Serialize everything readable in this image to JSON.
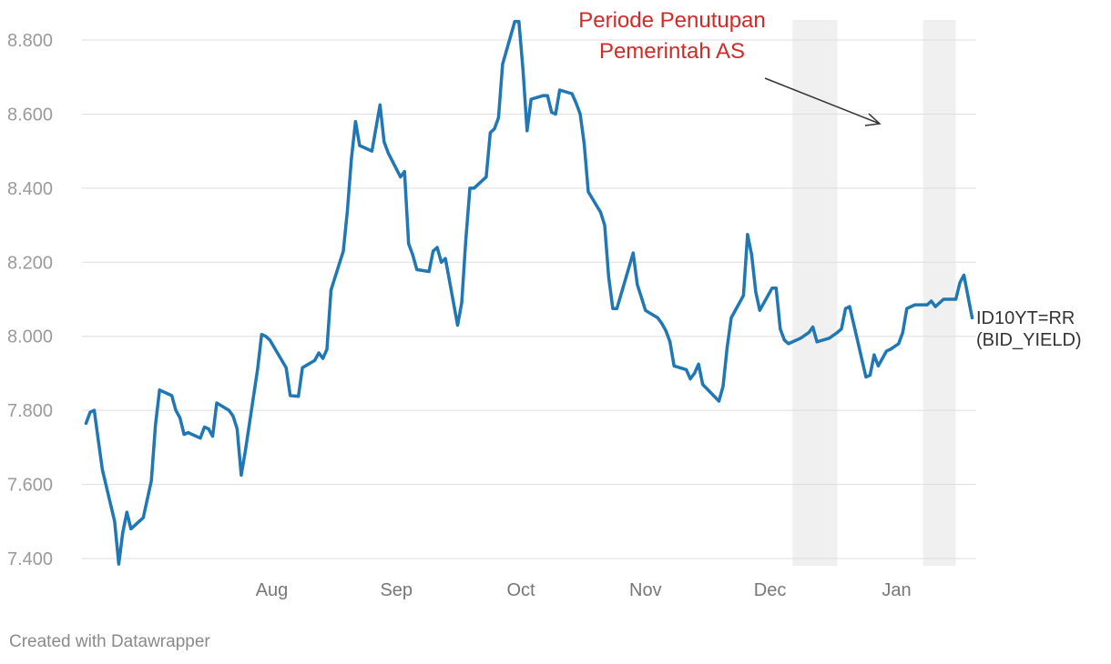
{
  "chart_data": {
    "type": "line",
    "title": "",
    "xlabel": "",
    "ylabel": "",
    "ylim": [
      7.38,
      8.86
    ],
    "grid": true,
    "y_ticks": [
      "7.400",
      "7.600",
      "7.800",
      "8.000",
      "8.200",
      "8.400",
      "8.600",
      "8.800"
    ],
    "x_ticks": [
      "Aug",
      "Sep",
      "Oct",
      "Nov",
      "Dec",
      "Jan"
    ],
    "annotation": {
      "lines": [
        "Periode Penutupan",
        "Pemerintah AS"
      ],
      "color": "#d22a27"
    },
    "shaded_periods": [
      {
        "from": "2018-12-22",
        "to": "2019-01-02"
      },
      {
        "from": "2019-01-23",
        "to": "2019-01-31"
      }
    ],
    "series": [
      {
        "name": "ID10YT=RR (BID_YIELD)",
        "label_lines": [
          "ID10YT=RR",
          "(BID_YIELD)"
        ],
        "color": "#1f77b4",
        "points": [
          [
            "2018-07-02",
            7.765
          ],
          [
            "2018-07-03",
            7.795
          ],
          [
            "2018-07-04",
            7.8
          ],
          [
            "2018-07-05",
            7.72
          ],
          [
            "2018-07-06",
            7.64
          ],
          [
            "2018-07-09",
            7.5
          ],
          [
            "2018-07-10",
            7.385
          ],
          [
            "2018-07-11",
            7.47
          ],
          [
            "2018-07-12",
            7.525
          ],
          [
            "2018-07-13",
            7.48
          ],
          [
            "2018-07-16",
            7.51
          ],
          [
            "2018-07-18",
            7.61
          ],
          [
            "2018-07-19",
            7.76
          ],
          [
            "2018-07-20",
            7.855
          ],
          [
            "2018-07-23",
            7.84
          ],
          [
            "2018-07-24",
            7.8
          ],
          [
            "2018-07-25",
            7.78
          ],
          [
            "2018-07-26",
            7.735
          ],
          [
            "2018-07-27",
            7.74
          ],
          [
            "2018-07-30",
            7.725
          ],
          [
            "2018-07-31",
            7.755
          ],
          [
            "2018-08-01",
            7.75
          ],
          [
            "2018-08-02",
            7.73
          ],
          [
            "2018-08-03",
            7.82
          ],
          [
            "2018-08-06",
            7.8
          ],
          [
            "2018-08-07",
            7.785
          ],
          [
            "2018-08-08",
            7.75
          ],
          [
            "2018-08-09",
            7.625
          ],
          [
            "2018-08-10",
            7.69
          ],
          [
            "2018-08-13",
            7.91
          ],
          [
            "2018-08-14",
            8.005
          ],
          [
            "2018-08-15",
            8.0
          ],
          [
            "2018-08-16",
            7.99
          ],
          [
            "2018-08-20",
            7.915
          ],
          [
            "2018-08-21",
            7.84
          ],
          [
            "2018-08-23",
            7.838
          ],
          [
            "2018-08-24",
            7.915
          ],
          [
            "2018-08-27",
            7.935
          ],
          [
            "2018-08-28",
            7.955
          ],
          [
            "2018-08-29",
            7.94
          ],
          [
            "2018-08-30",
            7.965
          ],
          [
            "2018-08-31",
            8.125
          ],
          [
            "2018-09-03",
            8.23
          ],
          [
            "2018-09-04",
            8.34
          ],
          [
            "2018-09-05",
            8.48
          ],
          [
            "2018-09-06",
            8.58
          ],
          [
            "2018-09-07",
            8.515
          ],
          [
            "2018-09-10",
            8.5
          ],
          [
            "2018-09-12",
            8.625
          ],
          [
            "2018-09-13",
            8.525
          ],
          [
            "2018-09-14",
            8.495
          ],
          [
            "2018-09-17",
            8.43
          ],
          [
            "2018-09-18",
            8.445
          ],
          [
            "2018-09-19",
            8.25
          ],
          [
            "2018-09-20",
            8.22
          ],
          [
            "2018-09-21",
            8.18
          ],
          [
            "2018-09-24",
            8.175
          ],
          [
            "2018-09-25",
            8.23
          ],
          [
            "2018-09-26",
            8.24
          ],
          [
            "2018-09-27",
            8.2
          ],
          [
            "2018-09-28",
            8.21
          ],
          [
            "2018-10-01",
            8.03
          ],
          [
            "2018-10-02",
            8.09
          ],
          [
            "2018-10-03",
            8.26
          ],
          [
            "2018-10-04",
            8.4
          ],
          [
            "2018-10-05",
            8.4
          ],
          [
            "2018-10-08",
            8.43
          ],
          [
            "2018-10-09",
            8.55
          ],
          [
            "2018-10-10",
            8.56
          ],
          [
            "2018-10-11",
            8.59
          ],
          [
            "2018-10-12",
            8.735
          ],
          [
            "2018-10-15",
            8.85
          ],
          [
            "2018-10-16",
            8.85
          ],
          [
            "2018-10-17",
            8.72
          ],
          [
            "2018-10-18",
            8.555
          ],
          [
            "2018-10-19",
            8.64
          ],
          [
            "2018-10-22",
            8.65
          ],
          [
            "2018-10-23",
            8.65
          ],
          [
            "2018-10-24",
            8.605
          ],
          [
            "2018-10-25",
            8.6
          ],
          [
            "2018-10-26",
            8.665
          ],
          [
            "2018-10-29",
            8.655
          ],
          [
            "2018-10-30",
            8.63
          ],
          [
            "2018-10-31",
            8.6
          ],
          [
            "2018-11-01",
            8.52
          ],
          [
            "2018-11-02",
            8.39
          ],
          [
            "2018-11-05",
            8.335
          ],
          [
            "2018-11-06",
            8.3
          ],
          [
            "2018-11-07",
            8.16
          ],
          [
            "2018-11-08",
            8.075
          ],
          [
            "2018-11-09",
            8.075
          ],
          [
            "2018-11-13",
            8.225
          ],
          [
            "2018-11-14",
            8.14
          ],
          [
            "2018-11-16",
            8.07
          ],
          [
            "2018-11-19",
            8.05
          ],
          [
            "2018-11-20",
            8.035
          ],
          [
            "2018-11-21",
            8.015
          ],
          [
            "2018-11-22",
            7.985
          ],
          [
            "2018-11-23",
            7.92
          ],
          [
            "2018-11-26",
            7.91
          ],
          [
            "2018-11-27",
            7.885
          ],
          [
            "2018-11-28",
            7.9
          ],
          [
            "2018-11-29",
            7.925
          ],
          [
            "2018-11-30",
            7.87
          ],
          [
            "2018-12-04",
            7.825
          ],
          [
            "2018-12-05",
            7.865
          ],
          [
            "2018-12-06",
            7.97
          ],
          [
            "2018-12-07",
            8.05
          ],
          [
            "2018-12-10",
            8.11
          ],
          [
            "2018-12-11",
            8.275
          ],
          [
            "2018-12-12",
            8.22
          ],
          [
            "2018-12-13",
            8.12
          ],
          [
            "2018-12-14",
            8.07
          ],
          [
            "2018-12-17",
            8.13
          ],
          [
            "2018-12-18",
            8.13
          ],
          [
            "2018-12-19",
            8.02
          ],
          [
            "2018-12-20",
            7.99
          ],
          [
            "2018-12-21",
            7.98
          ],
          [
            "2018-12-24",
            7.995
          ],
          [
            "2018-12-26",
            8.01
          ],
          [
            "2018-12-27",
            8.025
          ],
          [
            "2018-12-28",
            7.985
          ],
          [
            "2018-12-31",
            7.995
          ],
          [
            "2019-01-02",
            8.01
          ],
          [
            "2019-01-03",
            8.02
          ],
          [
            "2019-01-04",
            8.075
          ],
          [
            "2019-01-05",
            8.08
          ],
          [
            "2019-01-07",
            7.985
          ],
          [
            "2019-01-09",
            7.89
          ],
          [
            "2019-01-10",
            7.895
          ],
          [
            "2019-01-11",
            7.95
          ],
          [
            "2019-01-12",
            7.92
          ],
          [
            "2019-01-14",
            7.96
          ],
          [
            "2019-01-15",
            7.965
          ],
          [
            "2019-01-17",
            7.98
          ],
          [
            "2019-01-18",
            8.01
          ],
          [
            "2019-01-19",
            8.075
          ],
          [
            "2019-01-21",
            8.085
          ],
          [
            "2019-01-22",
            8.085
          ],
          [
            "2019-01-24",
            8.085
          ],
          [
            "2019-01-25",
            8.095
          ],
          [
            "2019-01-26",
            8.08
          ],
          [
            "2019-01-28",
            8.1
          ],
          [
            "2019-01-29",
            8.1
          ],
          [
            "2019-01-31",
            8.1
          ],
          [
            "2019-02-01",
            8.145
          ],
          [
            "2019-02-02",
            8.165
          ],
          [
            "2019-02-04",
            8.05
          ]
        ]
      }
    ]
  },
  "footer": {
    "credit": "Created with Datawrapper"
  }
}
